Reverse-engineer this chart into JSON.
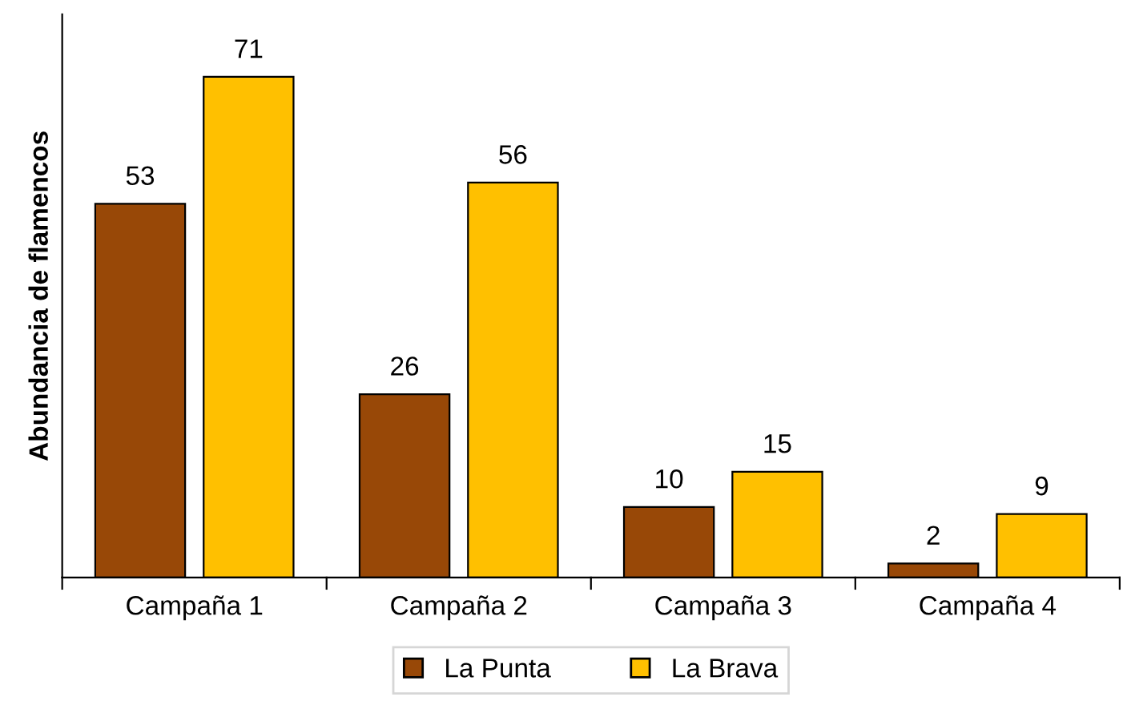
{
  "chart_data": {
    "type": "bar",
    "ylabel": "Abundancia de flamencos",
    "categories": [
      "Campaña 1",
      "Campaña 2",
      "Campaña 3",
      "Campaña 4"
    ],
    "series": [
      {
        "name": "La Punta",
        "color": "#984807",
        "values": [
          53,
          26,
          10,
          2
        ]
      },
      {
        "name": "La Brava",
        "color": "#ffc000",
        "values": [
          71,
          56,
          15,
          9
        ]
      }
    ],
    "data_labels": true,
    "legend": "bottom",
    "grid": false
  }
}
